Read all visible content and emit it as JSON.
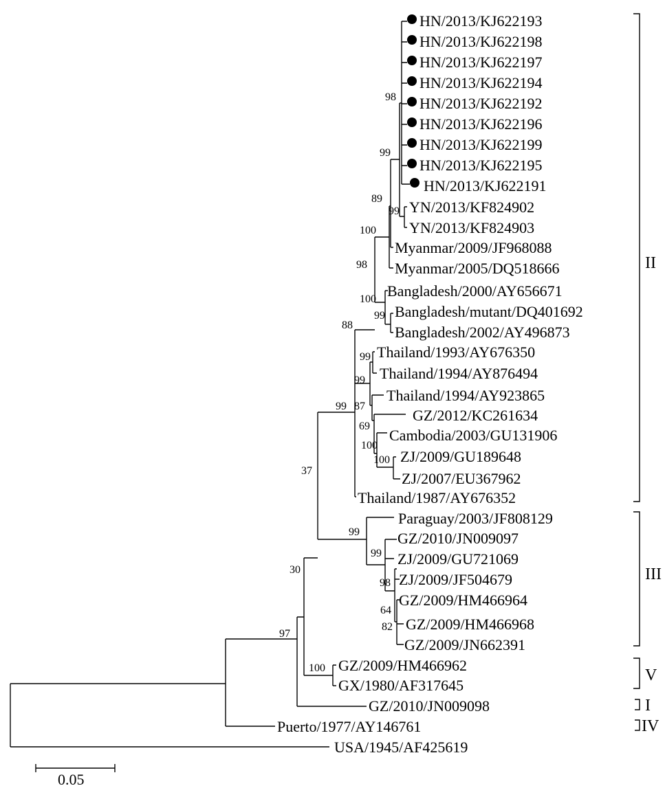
{
  "tips": [
    {
      "id": "kj93",
      "label": "HN/2013/KJ622193",
      "marked": true
    },
    {
      "id": "kj98",
      "label": "HN/2013/KJ622198",
      "marked": true
    },
    {
      "id": "kj97",
      "label": "HN/2013/KJ622197",
      "marked": true
    },
    {
      "id": "kj94",
      "label": "HN/2013/KJ622194",
      "marked": true
    },
    {
      "id": "kj92",
      "label": "HN/2013/KJ622192",
      "marked": true
    },
    {
      "id": "kj96",
      "label": "HN/2013/KJ622196",
      "marked": true
    },
    {
      "id": "kj99",
      "label": "HN/2013/KJ622199",
      "marked": true
    },
    {
      "id": "kj95",
      "label": "HN/2013/KJ622195",
      "marked": true
    },
    {
      "id": "kj91",
      "label": "HN/2013/KJ622191",
      "marked": true
    },
    {
      "id": "yn02",
      "label": "YN/2013/KF824902",
      "marked": false
    },
    {
      "id": "yn03",
      "label": "YN/2013/KF824903",
      "marked": false
    },
    {
      "id": "my09",
      "label": "Myanmar/2009/JF968088",
      "marked": false
    },
    {
      "id": "my05",
      "label": "Myanmar/2005/DQ518666",
      "marked": false
    },
    {
      "id": "bd00",
      "label": "Bangladesh/2000/AY656671",
      "marked": false
    },
    {
      "id": "bdmu",
      "label": "Bangladesh/mutant/DQ401692",
      "marked": false
    },
    {
      "id": "bd02",
      "label": "Bangladesh/2002/AY496873",
      "marked": false
    },
    {
      "id": "th93",
      "label": "Thailand/1993/AY676350",
      "marked": false
    },
    {
      "id": "th94a",
      "label": "Thailand/1994/AY876494",
      "marked": false
    },
    {
      "id": "th94b",
      "label": "Thailand/1994/AY923865",
      "marked": false
    },
    {
      "id": "gz12",
      "label": "GZ/2012/KC261634",
      "marked": false
    },
    {
      "id": "ca03",
      "label": "Cambodia/2003/GU131906",
      "marked": false
    },
    {
      "id": "zj09a",
      "label": "ZJ/2009/GU189648",
      "marked": false
    },
    {
      "id": "zj07",
      "label": "ZJ/2007/EU367962",
      "marked": false
    },
    {
      "id": "th87",
      "label": "Thailand/1987/AY676352",
      "marked": false
    },
    {
      "id": "pa03",
      "label": "Paraguay/2003/JF808129",
      "marked": false
    },
    {
      "id": "gz10a",
      "label": "GZ/2010/JN009097",
      "marked": false
    },
    {
      "id": "zj09b",
      "label": "ZJ/2009/GU721069",
      "marked": false
    },
    {
      "id": "zj09c",
      "label": "ZJ/2009/JF504679",
      "marked": false
    },
    {
      "id": "gz09a",
      "label": "GZ/2009/HM466964",
      "marked": false
    },
    {
      "id": "gz09b",
      "label": "GZ/2009/HM466968",
      "marked": false
    },
    {
      "id": "gz09c",
      "label": "GZ/2009/JN662391",
      "marked": false
    },
    {
      "id": "gz09d",
      "label": "GZ/2009/HM466962",
      "marked": false
    },
    {
      "id": "gx80",
      "label": "GX/1980/AF317645",
      "marked": false
    },
    {
      "id": "gz10b",
      "label": "GZ/2010/JN009098",
      "marked": false
    },
    {
      "id": "pr77",
      "label": "Puerto/1977/AY146761",
      "marked": false
    },
    {
      "id": "us45",
      "label": "USA/1945/AF425619",
      "marked": false
    }
  ],
  "bootstrap": [
    {
      "id": "n_hn_inner",
      "value": "98"
    },
    {
      "id": "n_hn_yn",
      "value": "99"
    },
    {
      "id": "n_yn",
      "value": "99"
    },
    {
      "id": "n_myanmar_a",
      "value": "89"
    },
    {
      "id": "n_myanmar_b",
      "value": "100"
    },
    {
      "id": "n_bangla_cl",
      "value": "98"
    },
    {
      "id": "n_bangla_a",
      "value": "100"
    },
    {
      "id": "n_bangla_b",
      "value": "99"
    },
    {
      "id": "n_cladeII_top",
      "value": "88"
    },
    {
      "id": "n_th_a",
      "value": "99"
    },
    {
      "id": "n_th_b",
      "value": "99"
    },
    {
      "id": "n_th_c",
      "value": "87"
    },
    {
      "id": "n_gz12",
      "value": "69"
    },
    {
      "id": "n_cam",
      "value": "100"
    },
    {
      "id": "n_zj",
      "value": "100"
    },
    {
      "id": "n_cladeII",
      "value": "99"
    },
    {
      "id": "n_II_III",
      "value": "37"
    },
    {
      "id": "n_cladeIII",
      "value": "99"
    },
    {
      "id": "n_III_a",
      "value": "99"
    },
    {
      "id": "n_III_b",
      "value": "98"
    },
    {
      "id": "n_III_c",
      "value": "64"
    },
    {
      "id": "n_III_d",
      "value": "82"
    },
    {
      "id": "n_cladeV",
      "value": "100"
    },
    {
      "id": "n_I_V",
      "value": "30"
    },
    {
      "id": "n_IV",
      "value": "97"
    }
  ],
  "groups": [
    {
      "id": "II",
      "label": "II"
    },
    {
      "id": "III",
      "label": "III"
    },
    {
      "id": "V",
      "label": "V"
    },
    {
      "id": "I",
      "label": "I"
    },
    {
      "id": "IV",
      "label": "IV"
    }
  ],
  "scale_bar": {
    "label": "0.05",
    "value": 0.05
  }
}
